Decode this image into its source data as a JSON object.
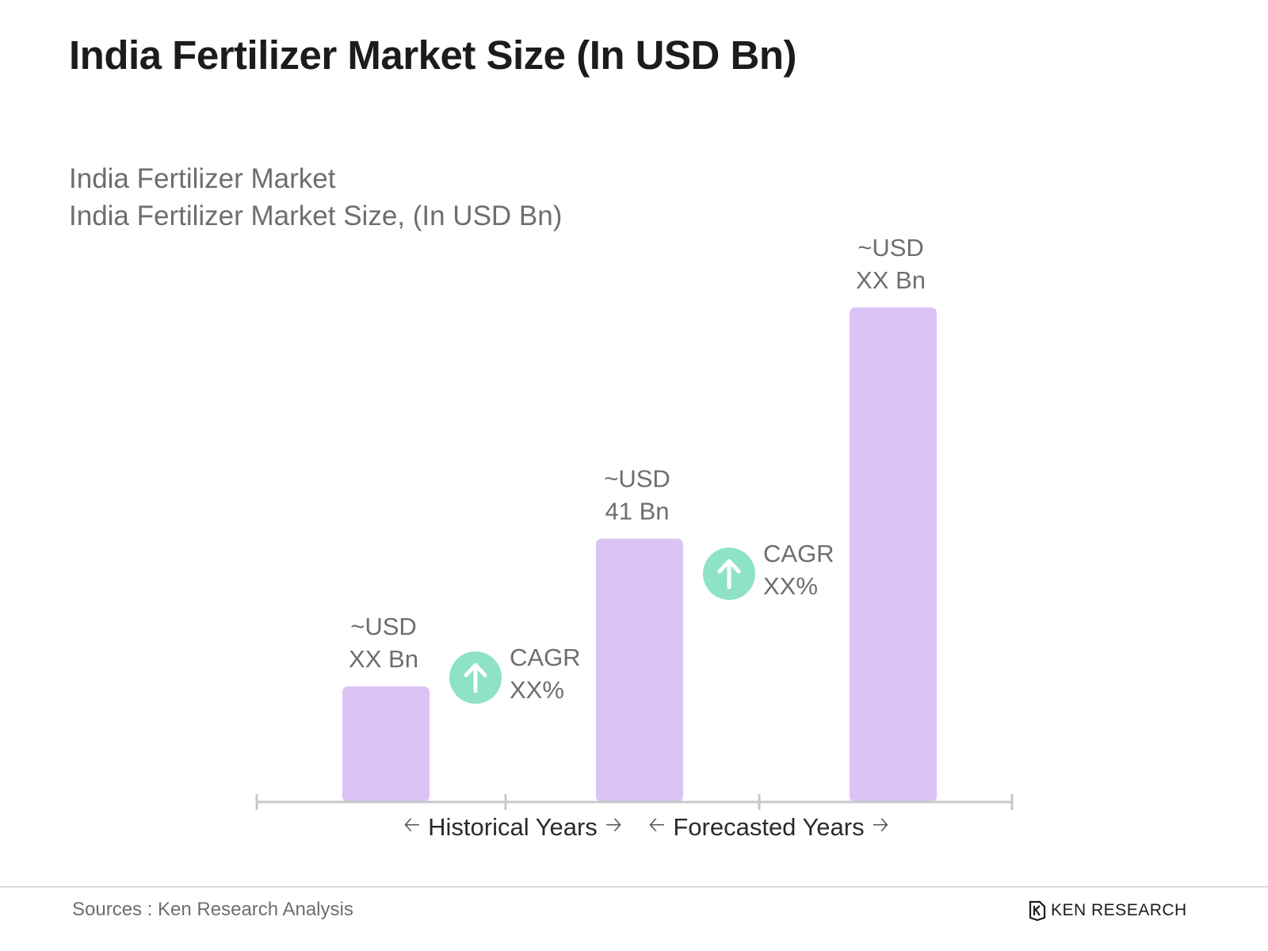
{
  "header": {
    "title": "India Fertilizer Market Size (In USD Bn)",
    "subtitle_line1": "India Fertilizer Market",
    "subtitle_line2": "India Fertilizer Market Size, (In USD Bn)"
  },
  "chart_data": {
    "type": "bar",
    "title": "India Fertilizer Market Size (In USD Bn)",
    "categories": [
      "",
      "",
      ""
    ],
    "values": [
      18,
      41,
      77
    ],
    "ylim": [
      0,
      80
    ],
    "data_labels": [
      [
        "~USD",
        "XX Bn"
      ],
      [
        "~USD",
        "41 Bn"
      ],
      [
        "~USD",
        "XX Bn"
      ]
    ],
    "annotations": [
      {
        "between": [
          0,
          1
        ],
        "label": [
          "CAGR",
          "XX%"
        ],
        "icon": "arrow-up-icon"
      },
      {
        "between": [
          1,
          2
        ],
        "label": [
          "CAGR",
          "XX%"
        ],
        "icon": "arrow-up-icon"
      }
    ],
    "periods": [
      {
        "label": "Historical Years",
        "from": 0,
        "to": 1
      },
      {
        "label": "Forecasted Years",
        "from": 1,
        "to": 2
      }
    ],
    "colors": {
      "bar": "#dcc3f5",
      "cagr_icon": "#8ee2c7",
      "axis": "#c8c8c8",
      "label": "#6e6e6e"
    },
    "grid": false
  },
  "footer": {
    "source": "Sources : Ken Research Analysis",
    "brand": "KEN RESEARCH",
    "brand_icon": "ken-research-logo-icon"
  }
}
